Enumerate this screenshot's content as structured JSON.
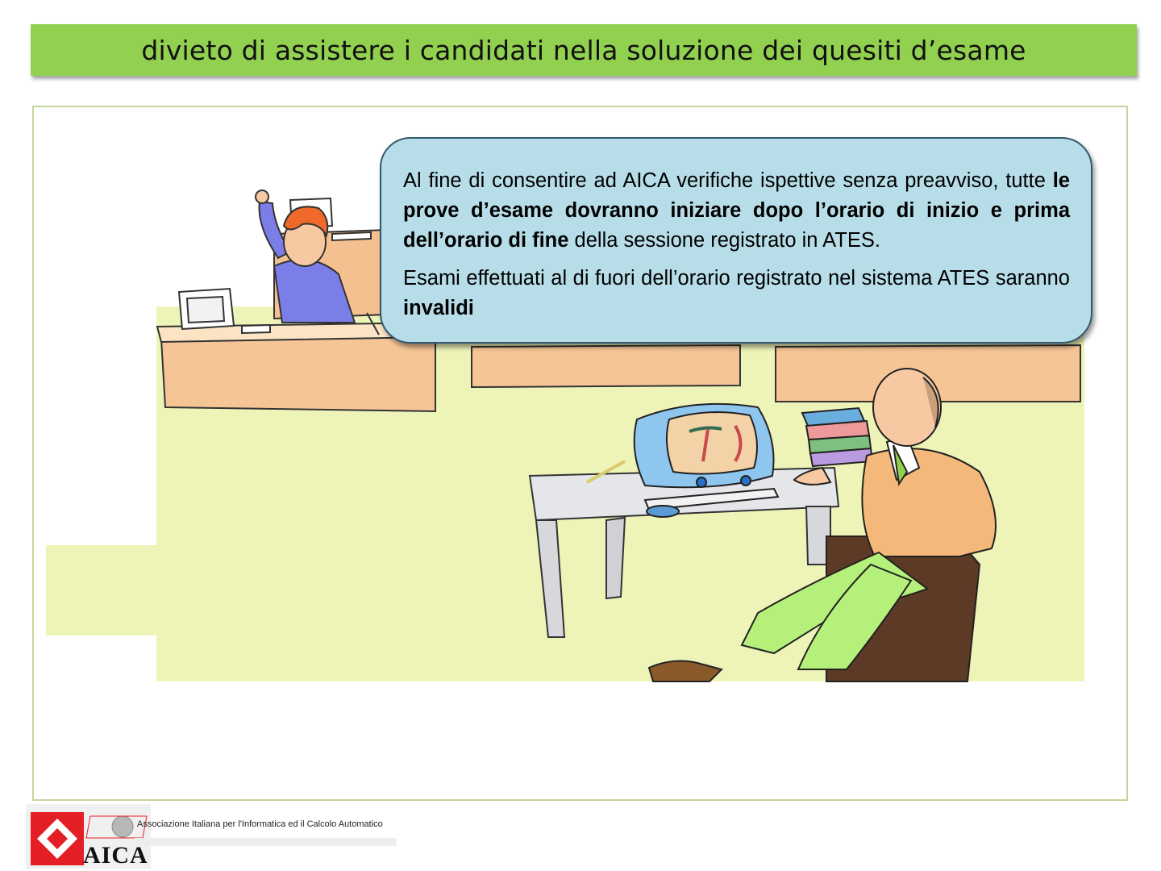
{
  "slide": {
    "title": "divieto di assistere i candidati nella soluzione dei quesiti d’esame"
  },
  "callout": {
    "p1_a": "Al fine di consentire ad AICA verifiche ispettive senza preavviso, tutte ",
    "p1_b": "le prove d’esame dovranno iniziare dopo l’orario di inizio e prima dell’orario di fine",
    "p1_c": " della sessione registrato in ATES.",
    "p2_a": "Esami effettuati al di fuori dell’orario registrato nel sistema ATES saranno ",
    "p2_b": "invalidi"
  },
  "footer": {
    "org_name": "Associazione Italiana per l'Informatica ed il Calcolo Automatico",
    "logo_text": "AICA"
  },
  "colors": {
    "title_bg": "#92d050",
    "callout_bg": "#b7dde8",
    "frame_border": "#c3d69b",
    "floor": "#eef3b8",
    "logo_red": "#e31e24"
  }
}
